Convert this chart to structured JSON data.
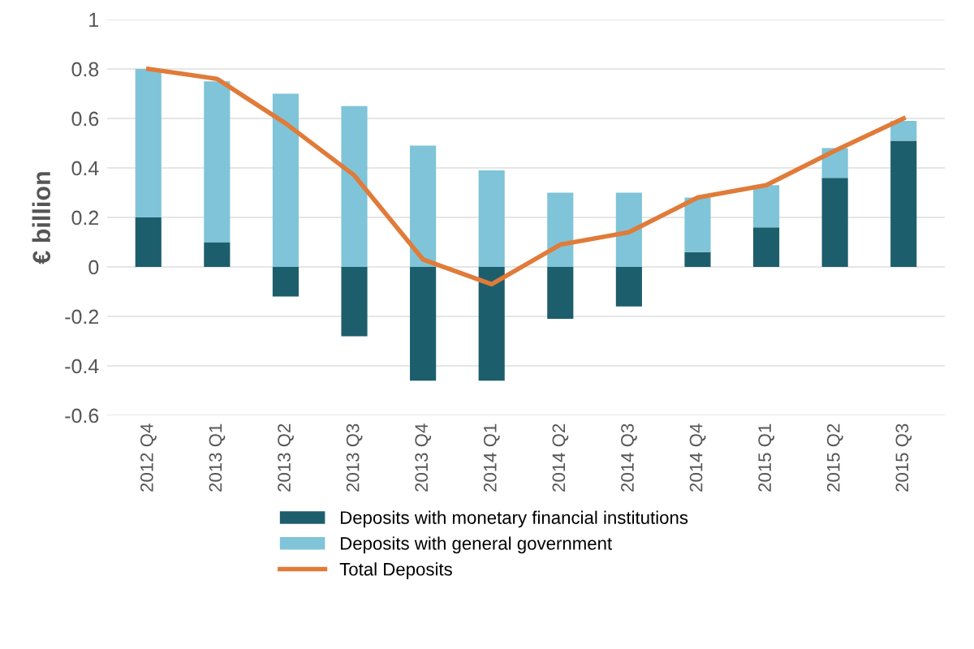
{
  "chart_data": {
    "type": "bar",
    "stacked": true,
    "ylabel": "€ billion",
    "categories": [
      "2012 Q4",
      "2013 Q1",
      "2013 Q2",
      "2013 Q3",
      "2013 Q4",
      "2014 Q1",
      "2014 Q2",
      "2014 Q3",
      "2014 Q4",
      "2015 Q1",
      "2015 Q2",
      "2015 Q3"
    ],
    "series": [
      {
        "name": "Deposits with monetary financial institutions",
        "color": "#1d5e6c",
        "values": [
          0.2,
          0.1,
          -0.12,
          -0.28,
          -0.46,
          -0.46,
          -0.21,
          -0.16,
          0.06,
          0.16,
          0.36,
          0.51
        ]
      },
      {
        "name": "Deposits with general government",
        "color": "#7fc4d8",
        "values": [
          0.6,
          0.65,
          0.7,
          0.65,
          0.49,
          0.39,
          0.3,
          0.3,
          0.22,
          0.17,
          0.12,
          0.08
        ]
      },
      {
        "name": "Total Deposits",
        "type": "line",
        "color": "#e07b39",
        "values": [
          0.8,
          0.76,
          0.58,
          0.37,
          0.03,
          -0.07,
          0.09,
          0.14,
          0.28,
          0.33,
          0.47,
          0.6
        ]
      }
    ],
    "ylim": [
      -0.6,
      1
    ],
    "yticks": [
      -0.6,
      -0.4,
      -0.2,
      0,
      0.2,
      0.4,
      0.6,
      0.8,
      1
    ],
    "grid": "y",
    "legend": "bottom"
  }
}
